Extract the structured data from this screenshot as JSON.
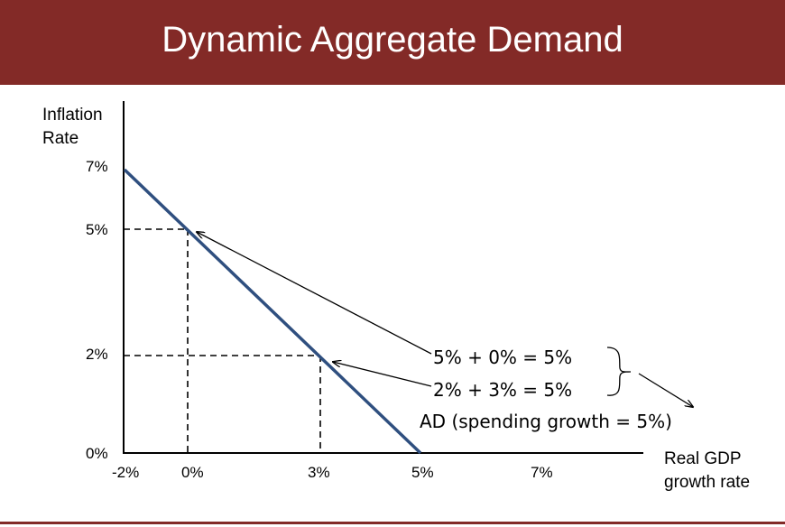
{
  "title": "Dynamic Aggregate Demand",
  "colors": {
    "header": "#832a27",
    "curve": "#2f4f7f"
  },
  "chart_data": {
    "type": "line",
    "ylabel_line1": "Inflation",
    "ylabel_line2": "Rate",
    "xlabel_line1": "Real GDP",
    "xlabel_line2": "growth rate",
    "x_ticks": [
      "-2%",
      "0%",
      "3%",
      "5%",
      "7%"
    ],
    "y_ticks": [
      "0%",
      "2%",
      "5%",
      "7%"
    ],
    "xlim": [
      -2,
      7
    ],
    "ylim": [
      0,
      7
    ],
    "series": [
      {
        "points": [
          {
            "x": -2,
            "y": 7
          },
          {
            "x": 5,
            "y": 0
          }
        ]
      }
    ],
    "highlighted_points": [
      {
        "x": 0,
        "y": 5
      },
      {
        "x": 3,
        "y": 2
      }
    ],
    "annotations": {
      "eq1": "5% + 0% = 5%",
      "eq2": "2% + 3% = 5%",
      "curve_label": "AD (spending growth = 5%)"
    }
  }
}
